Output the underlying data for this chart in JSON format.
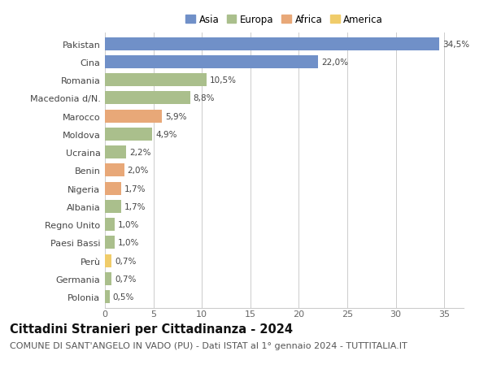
{
  "countries": [
    "Pakistan",
    "Cina",
    "Romania",
    "Macedonia d/N.",
    "Marocco",
    "Moldova",
    "Ucraina",
    "Benin",
    "Nigeria",
    "Albania",
    "Regno Unito",
    "Paesi Bassi",
    "Perù",
    "Germania",
    "Polonia"
  ],
  "values": [
    34.5,
    22.0,
    10.5,
    8.8,
    5.9,
    4.9,
    2.2,
    2.0,
    1.7,
    1.7,
    1.0,
    1.0,
    0.7,
    0.7,
    0.5
  ],
  "labels": [
    "34,5%",
    "22,0%",
    "10,5%",
    "8,8%",
    "5,9%",
    "4,9%",
    "2,2%",
    "2,0%",
    "1,7%",
    "1,7%",
    "1,0%",
    "1,0%",
    "0,7%",
    "0,7%",
    "0,5%"
  ],
  "continents": [
    "Asia",
    "Asia",
    "Europa",
    "Europa",
    "Africa",
    "Europa",
    "Europa",
    "Africa",
    "Africa",
    "Europa",
    "Europa",
    "Europa",
    "America",
    "Europa",
    "Europa"
  ],
  "colors": {
    "Asia": "#7090c8",
    "Europa": "#aabf8c",
    "Africa": "#e8a878",
    "America": "#f0cc6a"
  },
  "legend_order": [
    "Asia",
    "Europa",
    "Africa",
    "America"
  ],
  "title": "Cittadini Stranieri per Cittadinanza - 2024",
  "subtitle": "COMUNE DI SANT'ANGELO IN VADO (PU) - Dati ISTAT al 1° gennaio 2024 - TUTTITALIA.IT",
  "xlim": [
    0,
    37
  ],
  "xticks": [
    0,
    5,
    10,
    15,
    20,
    25,
    30,
    35
  ],
  "bg_color": "#ffffff",
  "grid_color": "#cccccc",
  "bar_height": 0.72,
  "title_fontsize": 10.5,
  "subtitle_fontsize": 8,
  "label_fontsize": 7.5,
  "tick_fontsize": 8,
  "legend_fontsize": 8.5
}
